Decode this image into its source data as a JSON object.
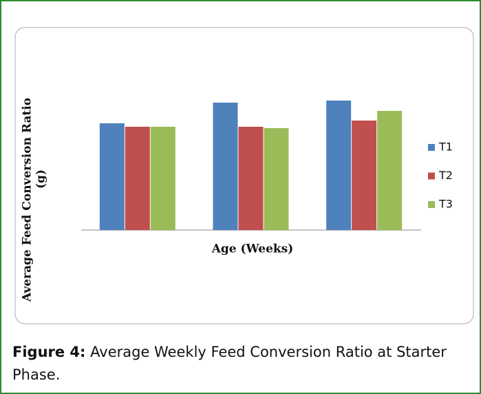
{
  "chart_data": {
    "type": "bar",
    "y_label": [
      "Average Feed Conversion Ratio",
      "(g)"
    ],
    "x_label": "Age (Weeks)",
    "categories": [
      null,
      null,
      null
    ],
    "series": [
      {
        "name": "T1",
        "color": "#4f81bd",
        "values": [
          1.55,
          1.85,
          1.88
        ]
      },
      {
        "name": "T2",
        "color": "#c0504d",
        "values": [
          1.5,
          1.5,
          1.59
        ]
      },
      {
        "name": "T3",
        "color": "#9bbb59",
        "values": [
          1.5,
          1.48,
          1.73
        ]
      }
    ],
    "ylim": [
      0,
      2.34
    ],
    "legend": "right"
  },
  "caption": {
    "label": "Figure 4:",
    "text": "Average Weekly Feed Conversion Ratio at Starter Phase."
  }
}
